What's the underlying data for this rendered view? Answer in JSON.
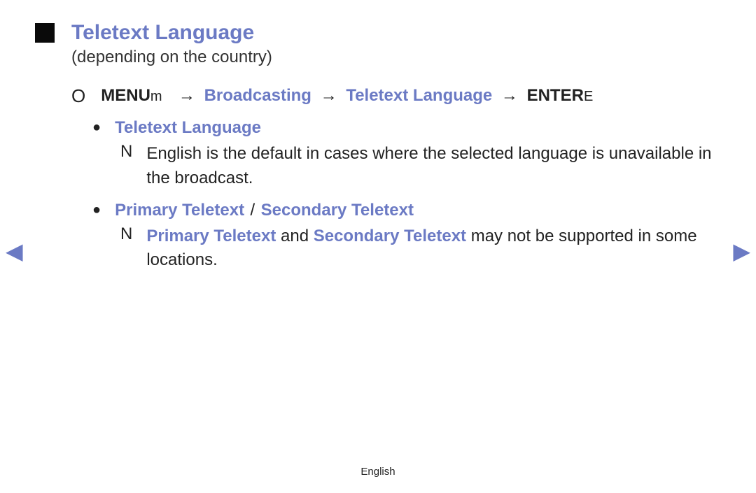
{
  "colors": {
    "accent": "#6b7ac4",
    "text": "#222222",
    "background": "#ffffff",
    "square_bullet": "#0a0a0a"
  },
  "typography": {
    "title_fontsize": 30,
    "body_fontsize": 24,
    "footer_fontsize": 15
  },
  "title": "Teletext Language",
  "subtitle": "(depending on the country)",
  "nav": {
    "circle_icon": "O",
    "menu_label": "MENU",
    "menu_suffix": "m",
    "arrow": "→",
    "step1": "Broadcasting",
    "step2": "Teletext Language",
    "enter_label": "ENTER",
    "enter_suffix": "E"
  },
  "sections": [
    {
      "heading_parts": [
        "Teletext Language"
      ],
      "note_icon": "N",
      "note_plain": "English is the default in cases where the selected language is unavailable in the broadcast."
    },
    {
      "heading_parts": [
        "Primary Teletext",
        "Secondary Teletext"
      ],
      "heading_separator": "/",
      "note_icon": "N",
      "note_term1": "Primary Teletext",
      "note_mid": " and ",
      "note_term2": "Secondary Teletext",
      "note_tail": " may not be supported in some locations."
    }
  ],
  "pager": {
    "left": "◀",
    "right": "▶"
  },
  "footer": "English"
}
